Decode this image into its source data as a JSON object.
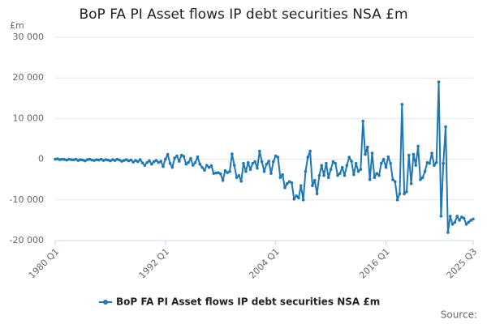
{
  "chart_data": {
    "type": "line",
    "title": "BoP FA PI Asset flows IP debt securities NSA £m",
    "y_label": "£m",
    "source": "Source:",
    "categories": [
      "1980 Q1",
      null,
      null,
      null,
      null,
      null,
      null,
      null,
      null,
      null,
      null,
      null,
      null,
      null,
      null,
      null,
      null,
      null,
      null,
      null,
      null,
      null,
      null,
      null,
      null,
      null,
      null,
      null,
      null,
      null,
      null,
      null,
      null,
      null,
      null,
      null,
      null,
      null,
      null,
      null,
      null,
      null,
      null,
      null,
      null,
      null,
      null,
      null,
      "1992 Q1",
      null,
      null,
      null,
      null,
      null,
      null,
      null,
      null,
      null,
      null,
      null,
      null,
      null,
      null,
      null,
      null,
      null,
      null,
      null,
      null,
      null,
      null,
      null,
      null,
      null,
      null,
      null,
      null,
      null,
      null,
      null,
      null,
      null,
      null,
      null,
      null,
      null,
      null,
      null,
      null,
      null,
      null,
      null,
      null,
      null,
      null,
      null,
      "2004 Q1",
      null,
      null,
      null,
      null,
      null,
      null,
      null,
      null,
      null,
      null,
      null,
      null,
      null,
      null,
      null,
      null,
      null,
      null,
      null,
      null,
      null,
      null,
      null,
      null,
      null,
      null,
      null,
      null,
      null,
      null,
      null,
      null,
      null,
      null,
      null,
      null,
      null,
      null,
      null,
      null,
      null,
      null,
      null,
      null,
      null,
      null,
      null,
      "2016 Q1",
      null,
      null,
      null,
      null,
      null,
      null,
      null,
      null,
      null,
      null,
      null,
      null,
      null,
      null,
      null,
      null,
      null,
      null,
      null,
      null,
      null,
      null,
      null,
      null,
      null,
      null,
      null,
      null,
      null,
      null,
      null,
      null,
      null,
      null,
      null,
      null,
      null,
      "2025 Q3"
    ],
    "series": [
      {
        "name": "BoP FA PI Asset flows IP debt securities NSA £m",
        "color": "#1d78b4",
        "values": [
          0,
          100,
          -100,
          0,
          -50,
          -200,
          0,
          -100,
          -150,
          0,
          -300,
          -100,
          -200,
          -400,
          -100,
          0,
          -200,
          -300,
          -100,
          -200,
          0,
          -300,
          -100,
          -200,
          -400,
          -100,
          -300,
          0,
          -200,
          -500,
          -300,
          -100,
          -400,
          -200,
          -700,
          -300,
          -600,
          -100,
          -900,
          -1500,
          -800,
          -400,
          -1200,
          -600,
          -300,
          -800,
          -500,
          -1800,
          0,
          1200,
          -1000,
          -2000,
          300,
          800,
          -500,
          1000,
          700,
          -1200,
          -800,
          200,
          -1500,
          -800,
          600,
          -1200,
          -2000,
          -2700,
          -1500,
          -2000,
          -1600,
          -3500,
          -3400,
          -3300,
          -3600,
          -5200,
          -2800,
          -3300,
          -3000,
          1300,
          -1500,
          -4500,
          -4000,
          -5400,
          -1000,
          -3000,
          -800,
          -2500,
          -1000,
          -600,
          -2200,
          2000,
          -600,
          -3000,
          -1200,
          -500,
          -3500,
          -600,
          800,
          500,
          -4500,
          -3800,
          -7000,
          -6000,
          -5500,
          -5800,
          -9800,
          -9000,
          -9500,
          -6500,
          -10000,
          -3000,
          500,
          2000,
          -6500,
          -5200,
          -8500,
          -4000,
          -1500,
          -4000,
          -1000,
          -4500,
          -2500,
          -600,
          -1000,
          -4000,
          -3500,
          -2000,
          -4000,
          -1500,
          500,
          -500,
          -3800,
          -1000,
          -3000,
          -2500,
          9400,
          1200,
          3000,
          -5000,
          1500,
          -4500,
          -3500,
          -4000,
          -1000,
          0,
          -2000,
          600,
          -1000,
          -5000,
          -5500,
          -10000,
          -8500,
          13500,
          -8500,
          -8000,
          1000,
          -6000,
          1200,
          -1500,
          3200,
          -5000,
          -4500,
          -3000,
          -800,
          -1000,
          1500,
          -1500,
          -800,
          19000,
          -14000,
          -1000,
          8000,
          -18000,
          -14000,
          -16000,
          -15500,
          -14000,
          -15000,
          -14200,
          -14500,
          -16000,
          -15500,
          -15000,
          -14700
        ]
      }
    ],
    "ylim": [
      -20000,
      30000
    ],
    "yticks": [
      {
        "value": -20000,
        "label": "-20 000"
      },
      {
        "value": -10000,
        "label": "-10 000"
      },
      0,
      {
        "value": 10000,
        "label": "10 000"
      },
      {
        "value": 20000,
        "label": "20 000"
      },
      {
        "value": 30000,
        "label": "30 000"
      }
    ],
    "grid": true,
    "legend": "bottom"
  }
}
